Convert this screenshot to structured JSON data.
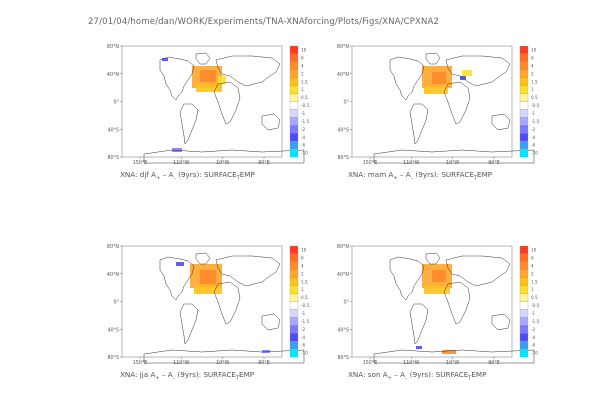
{
  "page_title": "27/01/04/home/dan/WORK/Experiments/TNA-XNAforcing/Plots/Figs/XNA/CPXNA2",
  "colorbar": {
    "labels": [
      "10",
      "6",
      "4",
      "2",
      "1.5",
      "1",
      "0.5",
      "-0.5",
      "-1",
      "-1.5",
      "-2",
      "-4",
      "-6",
      "-10"
    ],
    "colors": [
      "#ff3a1e",
      "#ff6a24",
      "#ff8a2a",
      "#ffa62c",
      "#ffc21c",
      "#ffe02a",
      "#fff59a",
      "#ffffff",
      "#d6d6ff",
      "#a8a8ff",
      "#7a7aff",
      "#4c4cf0",
      "#35a0f0",
      "#00e8ff"
    ]
  },
  "axes": {
    "y_ticks": [
      "80°N",
      "40°N",
      "0°",
      "40°S",
      "80°S"
    ],
    "x_ticks": [
      "150°E",
      "110°W",
      "10°W",
      "90°E"
    ]
  },
  "chart_data": [
    {
      "type": "heatmap",
      "panel": "djf",
      "caption": {
        "prefix": "XNA: djf A",
        "sub1": "+",
        "mid": " – A",
        "sub2": "–",
        "suffix": " (9yrs): SURFACE",
        "sub3": "T",
        "end": "EMP"
      }
    },
    {
      "type": "heatmap",
      "panel": "mam",
      "caption": {
        "prefix": "XNA: mam A",
        "sub1": "+",
        "mid": " – A",
        "sub2": "–",
        "suffix": " (9yrs): SURFACE",
        "sub3": "T",
        "end": "EMP"
      }
    },
    {
      "type": "heatmap",
      "panel": "jja",
      "caption": {
        "prefix": "XNA: jja A",
        "sub1": "+",
        "mid": " – A",
        "sub2": "–",
        "suffix": " (9yrs): SURFACE",
        "sub3": "T",
        "end": "EMP"
      }
    },
    {
      "type": "heatmap",
      "panel": "son",
      "caption": {
        "prefix": "XNA: son A",
        "sub1": "+",
        "mid": " – A",
        "sub2": "–",
        "suffix": " (9yrs): SURFACE",
        "sub3": "T",
        "end": "EMP"
      }
    }
  ]
}
